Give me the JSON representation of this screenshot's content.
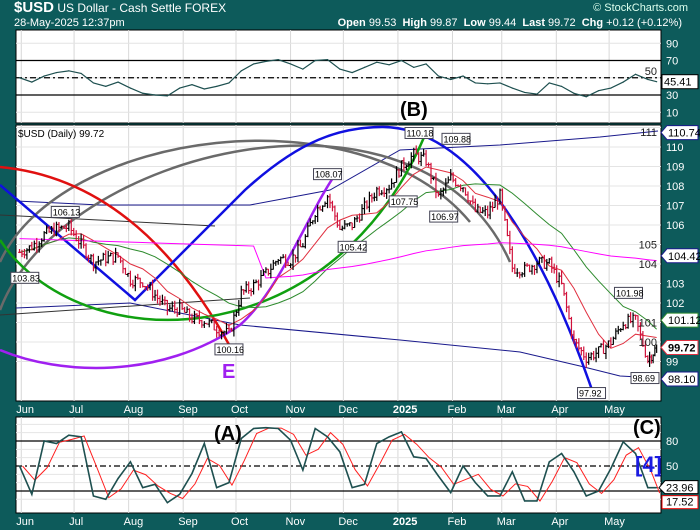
{
  "header": {
    "symbol": "$USD",
    "name": "US Dollar - Cash Settle",
    "exchange": "FOREX",
    "datetime": "28-May-2025 12:37pm",
    "credit": "© StockCharts.com",
    "open_label": "Open",
    "open": "99.53",
    "high_label": "High",
    "high": "99.87",
    "low_label": "Low",
    "low": "99.44",
    "last_label": "Last",
    "last": "99.72",
    "chg_label": "Chg",
    "chg": "+0.12 (+0.12%)"
  },
  "price_panel_label": "$USD (Daily) 99.72",
  "colors": {
    "background": "#0d5b5b",
    "up_bar": "#000000",
    "down_bar": "#d0103a",
    "ma_short": "#e03040",
    "ma_mid": "#2e8b2e",
    "ma_long": "#ff00ff",
    "band": "#1a1a8c",
    "rsi_line": "#1e5050",
    "stoch_k": "#1e5050",
    "stoch_d": "#ff2020"
  },
  "months": [
    "Jun",
    "Jul",
    "Aug",
    "Sep",
    "Oct",
    "Nov",
    "Dec",
    "2025",
    "Feb",
    "Mar",
    "Apr",
    "May"
  ],
  "annotations": {
    "b": "(B)",
    "e": "E",
    "a": "(A)",
    "c": "(C)",
    "wave4": "[4]"
  },
  "chart_data": [
    {
      "type": "line",
      "title": "RSI",
      "ylim": [
        0,
        100
      ],
      "yticks": [
        90,
        70,
        50,
        30,
        10
      ],
      "reference_lines": [
        70,
        50,
        30
      ],
      "last_value_label": "45.41",
      "dates": [
        "2024-05-31",
        "2024-06-07",
        "2024-06-14",
        "2024-06-21",
        "2024-06-28",
        "2024-07-05",
        "2024-07-12",
        "2024-07-19",
        "2024-07-26",
        "2024-08-02",
        "2024-08-09",
        "2024-08-16",
        "2024-08-23",
        "2024-08-30",
        "2024-09-06",
        "2024-09-13",
        "2024-09-20",
        "2024-09-27",
        "2024-10-04",
        "2024-10-11",
        "2024-10-18",
        "2024-10-25",
        "2024-11-01",
        "2024-11-08",
        "2024-11-15",
        "2024-11-22",
        "2024-11-29",
        "2024-12-06",
        "2024-12-13",
        "2024-12-20",
        "2024-12-27",
        "2025-01-03",
        "2025-01-10",
        "2025-01-17",
        "2025-01-24",
        "2025-01-31",
        "2025-02-07",
        "2025-02-14",
        "2025-02-21",
        "2025-02-28",
        "2025-03-07",
        "2025-03-14",
        "2025-03-21",
        "2025-03-28",
        "2025-04-04",
        "2025-04-11",
        "2025-04-18",
        "2025-04-25",
        "2025-05-02",
        "2025-05-09",
        "2025-05-16",
        "2025-05-23",
        "2025-05-28"
      ],
      "values": [
        50,
        45,
        52,
        56,
        58,
        55,
        44,
        40,
        45,
        38,
        32,
        30,
        29,
        38,
        42,
        37,
        40,
        44,
        58,
        66,
        69,
        71,
        66,
        60,
        70,
        71,
        60,
        56,
        62,
        68,
        65,
        70,
        62,
        66,
        52,
        48,
        52,
        44,
        43,
        44,
        38,
        33,
        31,
        44,
        40,
        32,
        28,
        35,
        38,
        45,
        54,
        48,
        45.41
      ]
    },
    {
      "type": "ohlc",
      "title": "$USD (Daily) 99.72",
      "ylim": [
        97.3,
        111.2
      ],
      "yticks": [
        99,
        100,
        101,
        102,
        103,
        104,
        105,
        106,
        107,
        108,
        109,
        110,
        111
      ],
      "dates": [
        "2024-05-31",
        "2024-06-07",
        "2024-06-14",
        "2024-06-21",
        "2024-06-28",
        "2024-07-05",
        "2024-07-12",
        "2024-07-19",
        "2024-07-26",
        "2024-08-02",
        "2024-08-09",
        "2024-08-16",
        "2024-08-23",
        "2024-08-30",
        "2024-09-06",
        "2024-09-13",
        "2024-09-20",
        "2024-09-27",
        "2024-10-04",
        "2024-10-11",
        "2024-10-18",
        "2024-10-25",
        "2024-11-01",
        "2024-11-08",
        "2024-11-15",
        "2024-11-22",
        "2024-11-29",
        "2024-12-06",
        "2024-12-13",
        "2024-12-20",
        "2024-12-27",
        "2025-01-03",
        "2025-01-10",
        "2025-01-17",
        "2025-01-24",
        "2025-01-31",
        "2025-02-07",
        "2025-02-14",
        "2025-02-21",
        "2025-02-28",
        "2025-03-07",
        "2025-03-14",
        "2025-03-21",
        "2025-03-28",
        "2025-04-04",
        "2025-04-11",
        "2025-04-18",
        "2025-04-25",
        "2025-05-02",
        "2025-05-09",
        "2025-05-16",
        "2025-05-23",
        "2025-05-28"
      ],
      "closes": [
        104.6,
        104.9,
        105.5,
        105.8,
        105.9,
        105.0,
        104.1,
        104.3,
        104.4,
        103.2,
        103.1,
        102.4,
        101.7,
        101.7,
        101.2,
        101.1,
        100.7,
        100.4,
        102.5,
        102.9,
        103.5,
        104.3,
        104.2,
        105.0,
        106.7,
        107.5,
        105.8,
        106.0,
        106.9,
        107.8,
        108.0,
        109.0,
        109.6,
        109.3,
        107.4,
        108.4,
        108.0,
        106.7,
        106.6,
        107.5,
        103.8,
        103.7,
        104.1,
        104.0,
        102.9,
        100.0,
        99.2,
        99.5,
        100.0,
        101.0,
        101.1,
        99.1,
        99.72
      ],
      "point_labels": [
        {
          "date": "2024-06-03",
          "value": 103.83,
          "text": "103.83",
          "pos": "below"
        },
        {
          "date": "2024-06-26",
          "value": 106.13,
          "text": "106.13",
          "pos": "above"
        },
        {
          "date": "2024-09-27",
          "value": 100.16,
          "text": "100.16",
          "pos": "below"
        },
        {
          "date": "2024-11-22",
          "value": 108.07,
          "text": "108.07",
          "pos": "above"
        },
        {
          "date": "2024-12-06",
          "value": 105.42,
          "text": "105.42",
          "pos": "below"
        },
        {
          "date": "2025-01-04",
          "value": 107.75,
          "text": "107.75",
          "pos": "below"
        },
        {
          "date": "2025-01-13",
          "value": 110.18,
          "text": "110.18",
          "pos": "above"
        },
        {
          "date": "2025-01-27",
          "value": 106.97,
          "text": "106.97",
          "pos": "below"
        },
        {
          "date": "2025-02-03",
          "value": 109.88,
          "text": "109.88",
          "pos": "above"
        },
        {
          "date": "2025-04-21",
          "value": 97.92,
          "text": "97.92",
          "pos": "below"
        },
        {
          "date": "2025-05-12",
          "value": 101.98,
          "text": "101.98",
          "pos": "above"
        },
        {
          "date": "2025-05-26",
          "value": 98.69,
          "text": "98.69",
          "pos": "below"
        }
      ],
      "axis_value_labels": [
        {
          "value": 110.74,
          "text": "110.74",
          "color": "#1a1a8c"
        },
        {
          "value": 104.42,
          "text": "104.42",
          "color": "#1a1a8c"
        },
        {
          "value": 101.12,
          "text": "101.12",
          "color": "#2e8b2e"
        },
        {
          "value": 99.72,
          "text": "99.72",
          "color": "#e03040",
          "bold": true
        },
        {
          "value": 98.1,
          "text": "98.10",
          "color": "#1a1a8c"
        }
      ]
    },
    {
      "type": "line",
      "title": "Stochastic",
      "ylim": [
        0,
        100
      ],
      "yticks": [
        80,
        50
      ],
      "reference_lines": [
        80,
        50,
        20
      ],
      "last_k_label": "23.96",
      "last_d_label": "17.52",
      "dates": [
        "2024-05-31",
        "2024-06-07",
        "2024-06-14",
        "2024-06-21",
        "2024-06-28",
        "2024-07-05",
        "2024-07-12",
        "2024-07-19",
        "2024-07-26",
        "2024-08-02",
        "2024-08-09",
        "2024-08-16",
        "2024-08-23",
        "2024-08-30",
        "2024-09-06",
        "2024-09-13",
        "2024-09-20",
        "2024-09-27",
        "2024-10-04",
        "2024-10-11",
        "2024-10-18",
        "2024-10-25",
        "2024-11-01",
        "2024-11-08",
        "2024-11-15",
        "2024-11-22",
        "2024-11-29",
        "2024-12-06",
        "2024-12-13",
        "2024-12-20",
        "2024-12-27",
        "2025-01-03",
        "2025-01-10",
        "2025-01-17",
        "2025-01-24",
        "2025-01-31",
        "2025-02-07",
        "2025-02-14",
        "2025-02-21",
        "2025-02-28",
        "2025-03-07",
        "2025-03-14",
        "2025-03-21",
        "2025-03-28",
        "2025-04-04",
        "2025-04-11",
        "2025-04-18",
        "2025-04-25",
        "2025-05-02",
        "2025-05-09",
        "2025-05-16",
        "2025-05-23",
        "2025-05-28"
      ],
      "k_values": [
        50,
        16,
        80,
        77,
        87,
        85,
        14,
        10,
        35,
        55,
        24,
        28,
        6,
        16,
        41,
        77,
        24,
        30,
        83,
        95,
        96,
        95,
        81,
        45,
        95,
        85,
        67,
        24,
        28,
        77,
        85,
        91,
        61,
        59,
        38,
        18,
        50,
        30,
        14,
        14,
        43,
        8,
        8,
        55,
        65,
        43,
        14,
        20,
        47,
        79,
        65,
        24,
        23.96
      ]
    }
  ]
}
